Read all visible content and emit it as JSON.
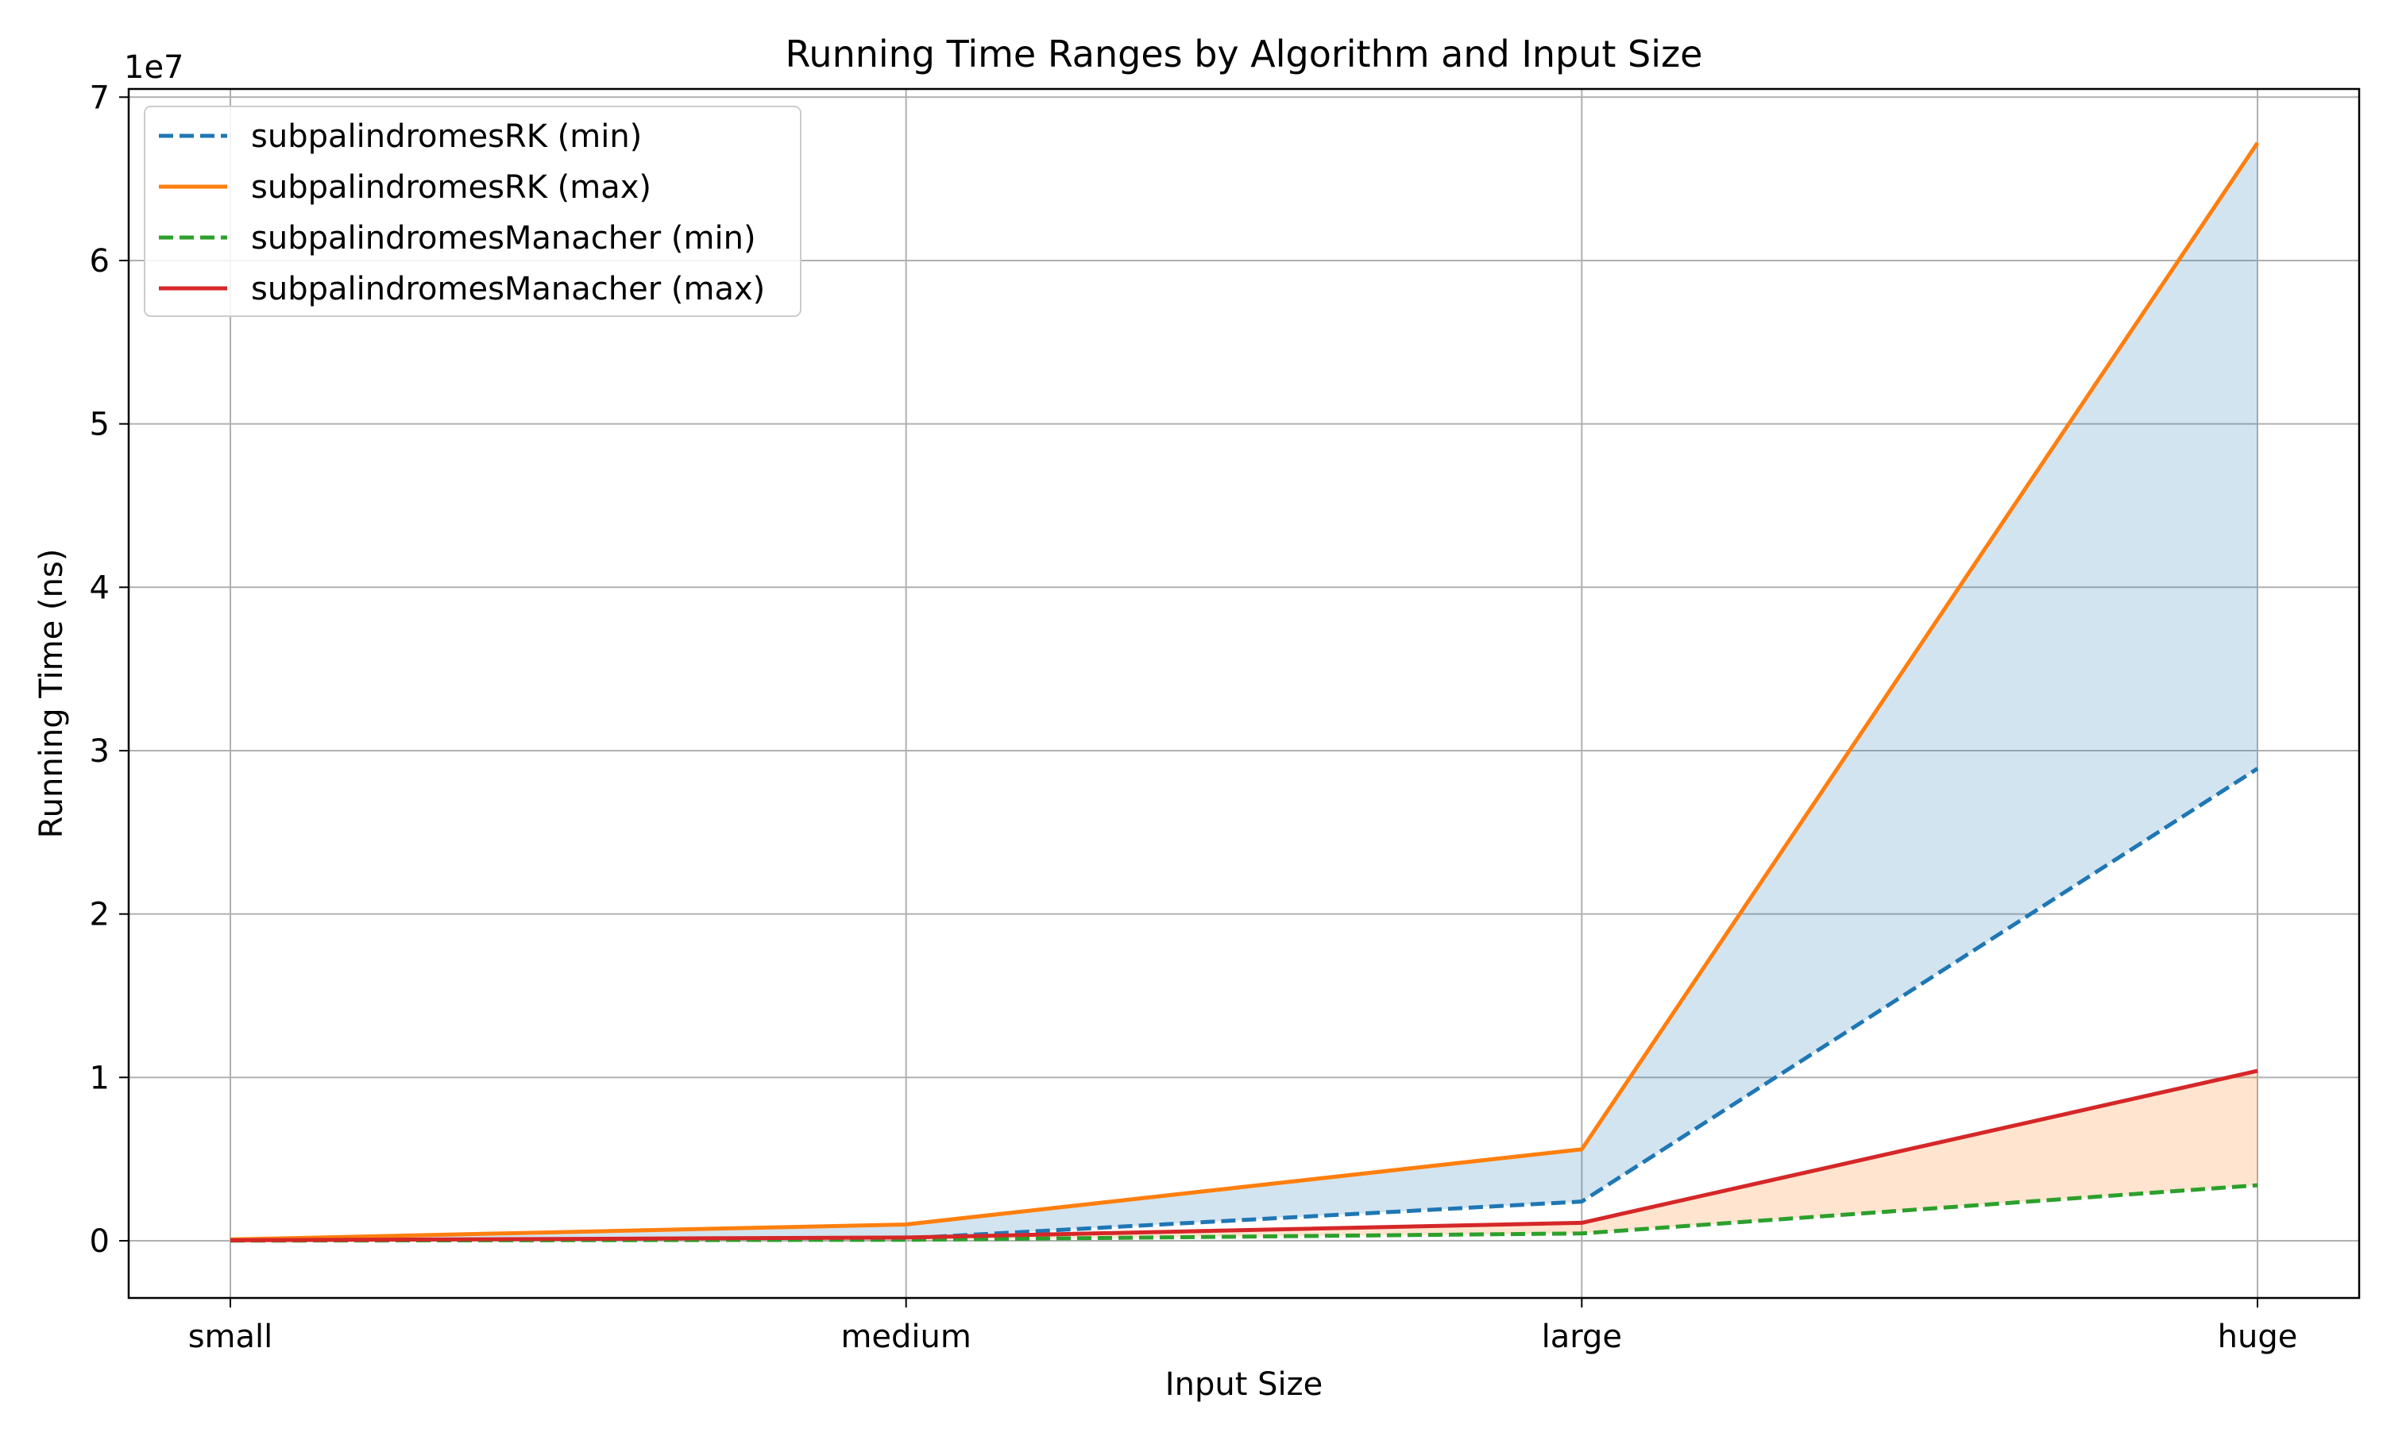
{
  "chart_data": {
    "type": "line",
    "title": "Running Time Ranges by Algorithm and Input Size",
    "xlabel": "Input Size",
    "ylabel": "Running Time (ns)",
    "y_offset_label": "1e7",
    "categories": [
      "small",
      "medium",
      "large",
      "huge"
    ],
    "ylim": [
      -3500000,
      70500000
    ],
    "yticks": [
      0,
      10000000,
      20000000,
      30000000,
      40000000,
      50000000,
      60000000,
      70000000
    ],
    "ytick_labels": [
      "0",
      "1",
      "2",
      "3",
      "4",
      "5",
      "6",
      "7"
    ],
    "grid": true,
    "legend_position": "top-left",
    "series": [
      {
        "name": "subpalindromesRK (min)",
        "values": [
          20000,
          150000,
          2400000,
          28900000
        ],
        "color": "#1f77b4",
        "dash": true
      },
      {
        "name": "subpalindromesRK (max)",
        "values": [
          80000,
          1000000,
          5600000,
          67200000
        ],
        "color": "#ff7f0e",
        "dash": false
      },
      {
        "name": "subpalindromesManacher (min)",
        "values": [
          10000,
          60000,
          450000,
          3400000
        ],
        "color": "#2ca02c",
        "dash": true
      },
      {
        "name": "subpalindromesManacher (max)",
        "values": [
          30000,
          200000,
          1100000,
          10400000
        ],
        "color": "#d62728",
        "dash": false
      }
    ],
    "fills": [
      {
        "between": [
          0,
          1
        ],
        "color": "#1f77b4",
        "opacity": 0.2
      },
      {
        "between": [
          2,
          3
        ],
        "color": "#ff7f0e",
        "opacity": 0.2
      }
    ]
  }
}
